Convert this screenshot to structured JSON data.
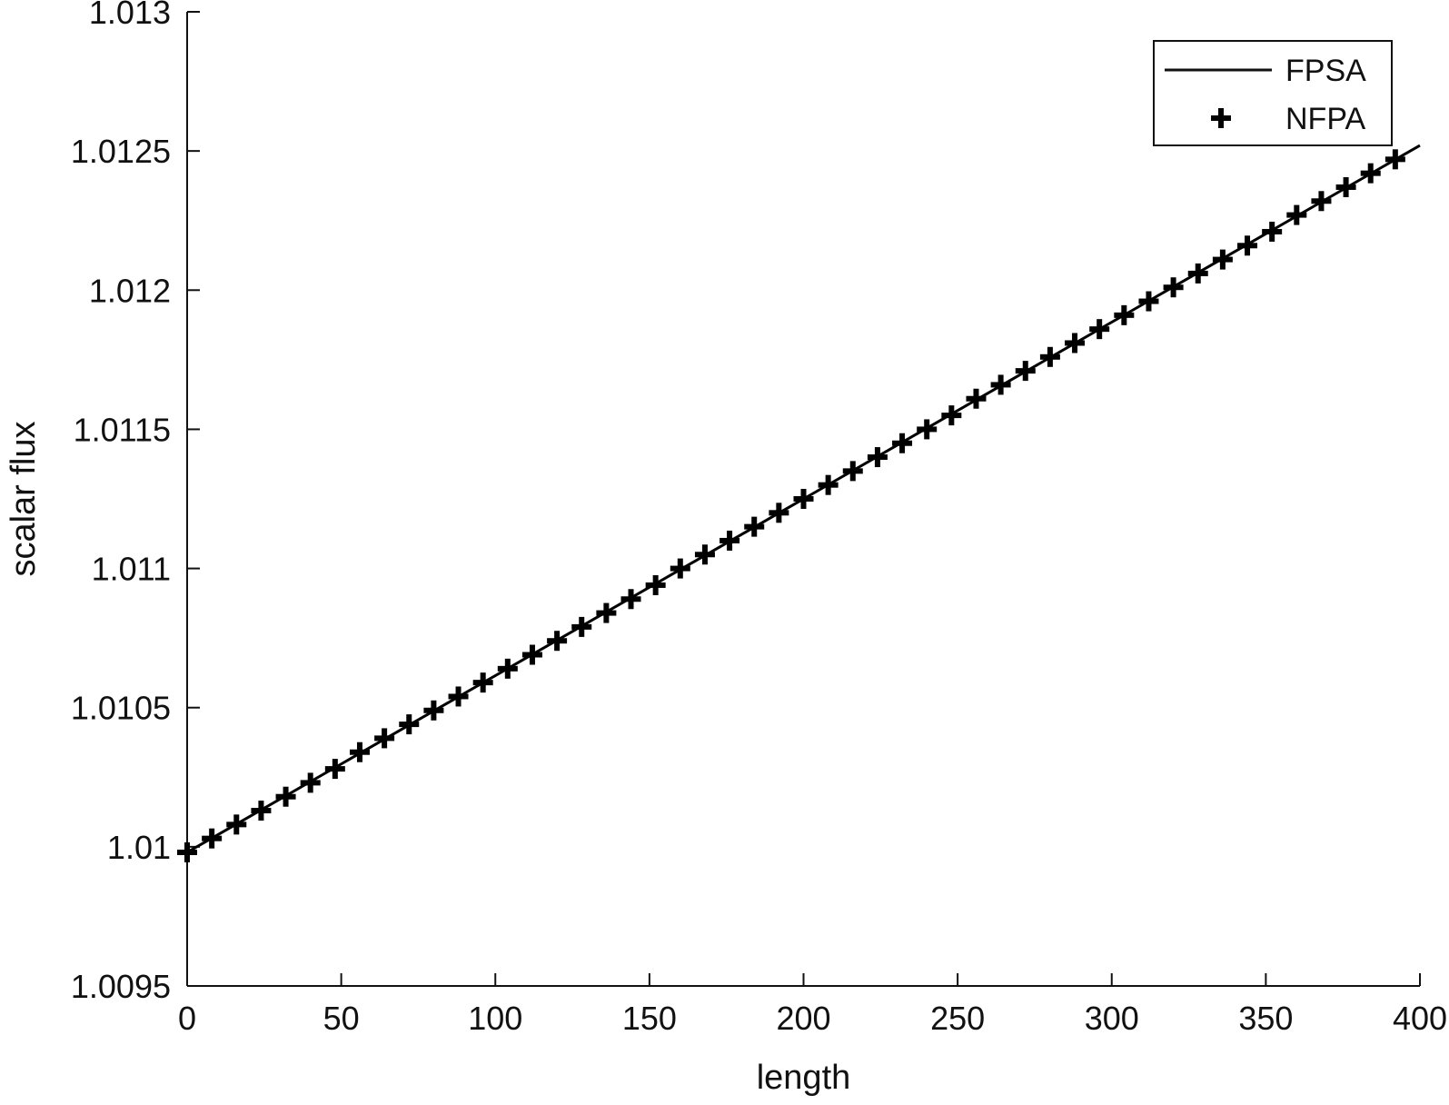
{
  "chart_data": {
    "type": "line",
    "xlabel": "length",
    "ylabel": "scalar flux",
    "xlim": [
      0,
      400
    ],
    "ylim": [
      1.0095,
      1.013
    ],
    "xticks": [
      0,
      50,
      100,
      150,
      200,
      250,
      300,
      350,
      400
    ],
    "xtick_labels": [
      "0",
      "50",
      "100",
      "150",
      "200",
      "250",
      "300",
      "350",
      "400"
    ],
    "yticks": [
      1.0095,
      1.01,
      1.0105,
      1.011,
      1.0115,
      1.012,
      1.0125,
      1.013
    ],
    "ytick_labels": [
      "1.0095",
      "1.01",
      "1.0105",
      "1.011",
      "1.0115",
      "1.012",
      "1.0125",
      "1.013"
    ],
    "grid": false,
    "legend_position": "top-right",
    "series": [
      {
        "name": "FPSA",
        "style": "solid-line",
        "color": "#000000",
        "x": [
          0,
          400
        ],
        "y": [
          1.00998,
          1.01252
        ]
      },
      {
        "name": "NFPA",
        "style": "plus-markers",
        "color": "#000000",
        "x": [
          0,
          8,
          16,
          24,
          32,
          40,
          48,
          56,
          64,
          72,
          80,
          88,
          96,
          104,
          112,
          120,
          128,
          136,
          144,
          152,
          160,
          168,
          176,
          184,
          192,
          200,
          208,
          216,
          224,
          232,
          240,
          248,
          256,
          264,
          272,
          280,
          288,
          296,
          304,
          312,
          320,
          328,
          336,
          344,
          352,
          360,
          368,
          376,
          384,
          392
        ],
        "y": [
          1.00998,
          1.01003,
          1.01008,
          1.01013,
          1.01018,
          1.01023,
          1.01028,
          1.01034,
          1.01039,
          1.01044,
          1.01049,
          1.01054,
          1.01059,
          1.01064,
          1.01069,
          1.01074,
          1.01079,
          1.01084,
          1.01089,
          1.01094,
          1.011,
          1.01105,
          1.0111,
          1.01115,
          1.0112,
          1.01125,
          1.0113,
          1.01135,
          1.0114,
          1.01145,
          1.0115,
          1.01155,
          1.01161,
          1.01166,
          1.01171,
          1.01176,
          1.01181,
          1.01186,
          1.01191,
          1.01196,
          1.01201,
          1.01206,
          1.01211,
          1.01216,
          1.01221,
          1.01227,
          1.01232,
          1.01237,
          1.01242,
          1.01247
        ]
      }
    ]
  }
}
